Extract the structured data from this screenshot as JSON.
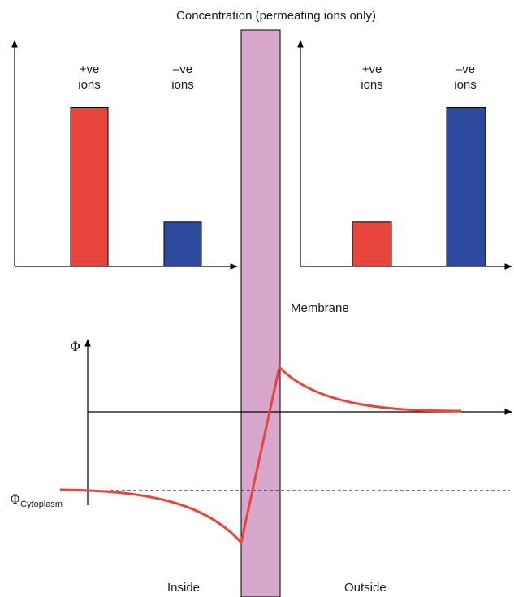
{
  "title": "Concentration (permeating ions only)",
  "membrane_label": "Membrane",
  "inside_label": "Inside",
  "outside_label": "Outside",
  "phi_symbol": "Φ",
  "phi_cytoplasm_base": "Φ",
  "phi_cytoplasm_sub": "Cytoplasm",
  "left_panel": {
    "bars": [
      {
        "label_line1": "+ve",
        "label_line2": "ions",
        "relative_height": 0.85,
        "color": "#e8453c"
      },
      {
        "label_line1": "–ve",
        "label_line2": "ions",
        "relative_height": 0.24,
        "color": "#2e4a9e"
      }
    ]
  },
  "right_panel": {
    "bars": [
      {
        "label_line1": "+ve",
        "label_line2": "ions",
        "relative_height": 0.24,
        "color": "#e8453c"
      },
      {
        "label_line1": "–ve",
        "label_line2": "ions",
        "relative_height": 0.85,
        "color": "#2e4a9e"
      }
    ]
  },
  "colors": {
    "membrane": "#d8a8cc",
    "potential_curve": "#e8453c",
    "axis": "#000000"
  }
}
